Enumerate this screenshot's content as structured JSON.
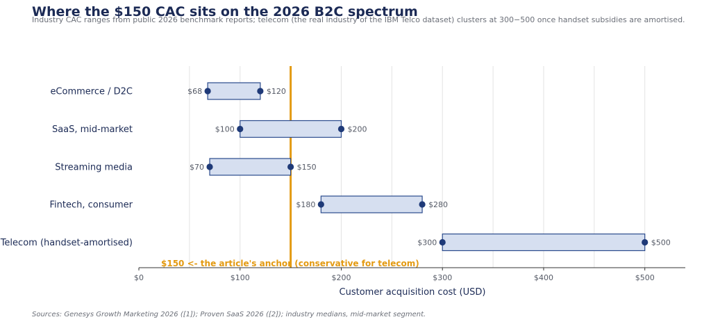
{
  "title": "Where the $150 CAC sits on the 2026 B2C spectrum",
  "subtitle": "Industry CAC ranges from public 2026 benchmark reports; telecom (the real industry of the IBM Telco dataset) clusters at 300−500 once handset subsidies are amortised.",
  "source": "Sources: Genesys Growth Marketing 2026 ([1]); Proven SaaS 2026 ([2]); industry medians, mid-market segment.",
  "chart_data": {
    "type": "range-bar",
    "orientation": "horizontal",
    "categories": [
      "eCommerce / D2C",
      "SaaS, mid-market",
      "Streaming media",
      "Fintech, consumer",
      "Telecom (handset-amortised)"
    ],
    "low": [
      68,
      100,
      70,
      180,
      300
    ],
    "high": [
      120,
      200,
      150,
      280,
      500
    ],
    "low_labels": [
      "$68",
      "$100",
      "$70",
      "$180",
      "$300"
    ],
    "high_labels": [
      "$120",
      "$200",
      "$150",
      "$280",
      "$500"
    ],
    "xlabel": "Customer acquisition cost (USD)",
    "xlim": [
      0,
      540
    ],
    "xticks": [
      0,
      100,
      200,
      300,
      400,
      500
    ],
    "xtick_labels": [
      "$0",
      "$100",
      "$200",
      "$300",
      "$400",
      "$500"
    ],
    "grid": true,
    "reference_line": {
      "value": 150,
      "label": "$150  <- the article's anchor (conservative for telecom)"
    },
    "colors": {
      "bar_fill": "#d6dff0",
      "bar_edge": "#2a4a8c",
      "dot": "#1f3a78",
      "anchor": "#e39a12",
      "title": "#1b2a55"
    }
  }
}
